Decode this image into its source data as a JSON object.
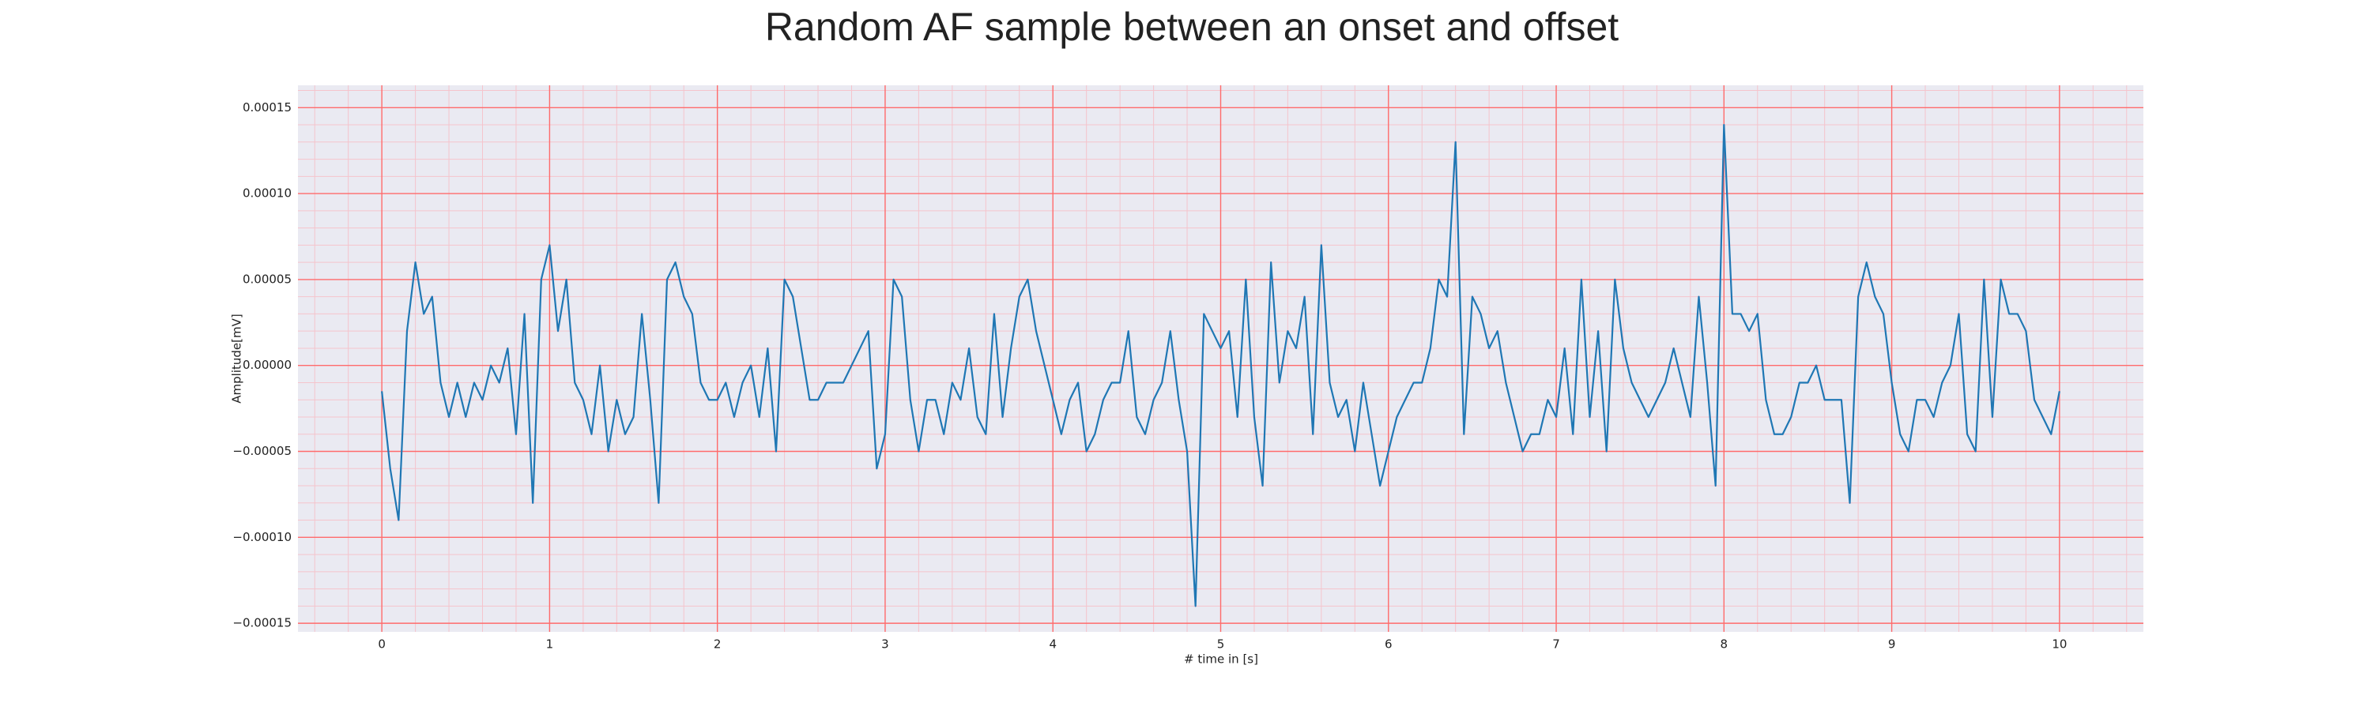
{
  "chart_data": {
    "type": "line",
    "title": "Random AF sample between an onset and offset",
    "xlabel": "# time in [s]",
    "ylabel": "Amplitude[mV]",
    "color": "#1f77b4",
    "x": [
      0,
      0.05,
      0.1,
      0.15,
      0.2,
      0.25,
      0.3,
      0.35,
      0.4,
      0.45,
      0.5,
      0.55,
      0.6,
      0.65,
      0.7,
      0.75,
      0.8,
      0.85,
      0.9,
      0.95,
      1,
      1.05,
      1.1,
      1.15,
      1.2,
      1.25,
      1.3,
      1.35,
      1.4,
      1.45,
      1.5,
      1.55,
      1.6,
      1.65,
      1.7,
      1.75,
      1.8,
      1.85,
      1.9,
      1.95,
      2,
      2.05,
      2.1,
      2.15,
      2.2,
      2.25,
      2.3,
      2.35,
      2.4,
      2.45,
      2.5,
      2.55,
      2.6,
      2.65,
      2.7,
      2.75,
      2.8,
      2.85,
      2.9,
      2.95,
      3,
      3.05,
      3.1,
      3.15,
      3.2,
      3.25,
      3.3,
      3.35,
      3.4,
      3.45,
      3.5,
      3.55,
      3.6,
      3.65,
      3.7,
      3.75,
      3.8,
      3.85,
      3.9,
      3.95,
      4,
      4.05,
      4.1,
      4.15,
      4.2,
      4.25,
      4.3,
      4.35,
      4.4,
      4.45,
      4.5,
      4.55,
      4.6,
      4.65,
      4.7,
      4.75,
      4.8,
      4.85,
      4.9,
      4.95,
      5,
      5.05,
      5.1,
      5.15,
      5.2,
      5.25,
      5.3,
      5.35,
      5.4,
      5.45,
      5.5,
      5.55,
      5.6,
      5.65,
      5.7,
      5.75,
      5.8,
      5.85,
      5.9,
      5.95,
      6,
      6.05,
      6.1,
      6.15,
      6.2,
      6.25,
      6.3,
      6.35,
      6.4,
      6.45,
      6.5,
      6.55,
      6.6,
      6.65,
      6.7,
      6.75,
      6.8,
      6.85,
      6.9,
      6.95,
      7,
      7.05,
      7.1,
      7.15,
      7.2,
      7.25,
      7.3,
      7.35,
      7.4,
      7.45,
      7.5,
      7.55,
      7.6,
      7.65,
      7.7,
      7.75,
      7.8,
      7.85,
      7.9,
      7.95,
      8,
      8.05,
      8.1,
      8.15,
      8.2,
      8.25,
      8.3,
      8.35,
      8.4,
      8.45,
      8.5,
      8.55,
      8.6,
      8.65,
      8.7,
      8.75,
      8.8,
      8.85,
      8.9,
      8.95,
      9,
      9.05,
      9.1,
      9.15,
      9.2,
      9.25,
      9.3,
      9.35,
      9.4,
      9.45,
      9.5,
      9.55,
      9.6,
      9.65,
      9.7,
      9.75,
      9.8,
      9.85,
      9.9,
      9.95,
      10
    ],
    "values": [
      -1.5e-05,
      -6e-05,
      -9e-05,
      2e-05,
      6e-05,
      3e-05,
      4e-05,
      -1e-05,
      -3e-05,
      -1e-05,
      -3e-05,
      -1e-05,
      -2e-05,
      0,
      -1e-05,
      1e-05,
      -4e-05,
      3e-05,
      -8e-05,
      5e-05,
      7e-05,
      2e-05,
      5e-05,
      -1e-05,
      -2e-05,
      -4e-05,
      0,
      -5e-05,
      -2e-05,
      -4e-05,
      -3e-05,
      3e-05,
      -2e-05,
      -8e-05,
      5e-05,
      6e-05,
      4e-05,
      3e-05,
      -1e-05,
      -2e-05,
      -2e-05,
      -1e-05,
      -3e-05,
      -1e-05,
      0,
      -3e-05,
      1e-05,
      -5e-05,
      5e-05,
      4e-05,
      1e-05,
      -2e-05,
      -2e-05,
      -1e-05,
      -1e-05,
      -1e-05,
      0,
      1e-05,
      2e-05,
      -6e-05,
      -4e-05,
      5e-05,
      4e-05,
      -2e-05,
      -5e-05,
      -2e-05,
      -2e-05,
      -4e-05,
      -1e-05,
      -2e-05,
      1e-05,
      -3e-05,
      -4e-05,
      3e-05,
      -3e-05,
      1e-05,
      4e-05,
      5e-05,
      2e-05,
      0,
      -2e-05,
      -4e-05,
      -2e-05,
      -1e-05,
      -5e-05,
      -4e-05,
      -2e-05,
      -1e-05,
      -1e-05,
      2e-05,
      -3e-05,
      -4e-05,
      -2e-05,
      -1e-05,
      2e-05,
      -2e-05,
      -5e-05,
      -0.00014,
      3e-05,
      2e-05,
      1e-05,
      2e-05,
      -3e-05,
      5e-05,
      -3e-05,
      -7e-05,
      6e-05,
      -1e-05,
      2e-05,
      1e-05,
      4e-05,
      -4e-05,
      7e-05,
      -1e-05,
      -3e-05,
      -2e-05,
      -5e-05,
      -1e-05,
      -4e-05,
      -7e-05,
      -5e-05,
      -3e-05,
      -2e-05,
      -1e-05,
      -1e-05,
      1e-05,
      5e-05,
      4e-05,
      0.00013,
      -4e-05,
      4e-05,
      3e-05,
      1e-05,
      2e-05,
      -1e-05,
      -3e-05,
      -5e-05,
      -4e-05,
      -4e-05,
      -2e-05,
      -3e-05,
      1e-05,
      -4e-05,
      5e-05,
      -3e-05,
      2e-05,
      -5e-05,
      5e-05,
      1e-05,
      -1e-05,
      -2e-05,
      -3e-05,
      -2e-05,
      -1e-05,
      1e-05,
      -1e-05,
      -3e-05,
      4e-05,
      -1e-05,
      -7e-05,
      0.00014,
      3e-05,
      3e-05,
      2e-05,
      3e-05,
      -2e-05,
      -4e-05,
      -4e-05,
      -3e-05,
      -1e-05,
      -1e-05,
      0,
      -2e-05,
      -2e-05,
      -2e-05,
      -8e-05,
      4e-05,
      6e-05,
      4e-05,
      3e-05,
      -1e-05,
      -4e-05,
      -5e-05,
      -2e-05,
      -2e-05,
      -3e-05,
      -1e-05,
      0,
      3e-05,
      -4e-05,
      -5e-05,
      5e-05,
      -3e-05,
      5e-05,
      3e-05,
      3e-05,
      2e-05,
      -2e-05,
      -3e-05,
      -4e-05,
      -1.5e-05
    ],
    "xlim": [
      -0.5,
      10.5
    ],
    "ylim": [
      -0.000155,
      0.000163
    ],
    "xticks": [
      0,
      1,
      2,
      3,
      4,
      5,
      6,
      7,
      8,
      9,
      10
    ],
    "yticks": [
      {
        "value": -0.00015,
        "label": "−0.00015"
      },
      {
        "value": -0.0001,
        "label": "−0.00010"
      },
      {
        "value": -5e-05,
        "label": "−0.00005"
      },
      {
        "value": 0,
        "label": "0.00000"
      },
      {
        "value": 5e-05,
        "label": "0.00005"
      },
      {
        "value": 0.0001,
        "label": "0.00010"
      },
      {
        "value": 0.00015,
        "label": "0.00015"
      }
    ],
    "xminorticks": [
      -0.4,
      -0.2,
      0.2,
      0.4,
      0.6,
      0.8,
      1.2,
      1.4,
      1.6,
      1.8,
      2.2,
      2.4,
      2.6,
      2.8,
      3.2,
      3.4,
      3.6,
      3.8,
      4.2,
      4.4,
      4.6,
      4.8,
      5.2,
      5.4,
      5.6,
      5.8,
      6.2,
      6.4,
      6.6,
      6.8,
      7.2,
      7.4,
      7.6,
      7.8,
      8.2,
      8.4,
      8.6,
      8.8,
      9.2,
      9.4,
      9.6,
      9.8,
      10.2,
      10.4
    ],
    "yminorticks": [
      -0.00014,
      -0.00013,
      -0.00012,
      -0.00011,
      -9e-05,
      -8e-05,
      -7e-05,
      -6e-05,
      -4e-05,
      -3e-05,
      -2e-05,
      -1e-05,
      1e-05,
      2e-05,
      3e-05,
      4e-05,
      6e-05,
      7e-05,
      8e-05,
      9e-05,
      0.00011,
      0.00012,
      0.00013,
      0.00014,
      0.00016
    ],
    "grid": true,
    "grid_color": "#ff6b6b",
    "minor_grid_color": "#f5c4cc",
    "background": "#eaeaf2"
  }
}
